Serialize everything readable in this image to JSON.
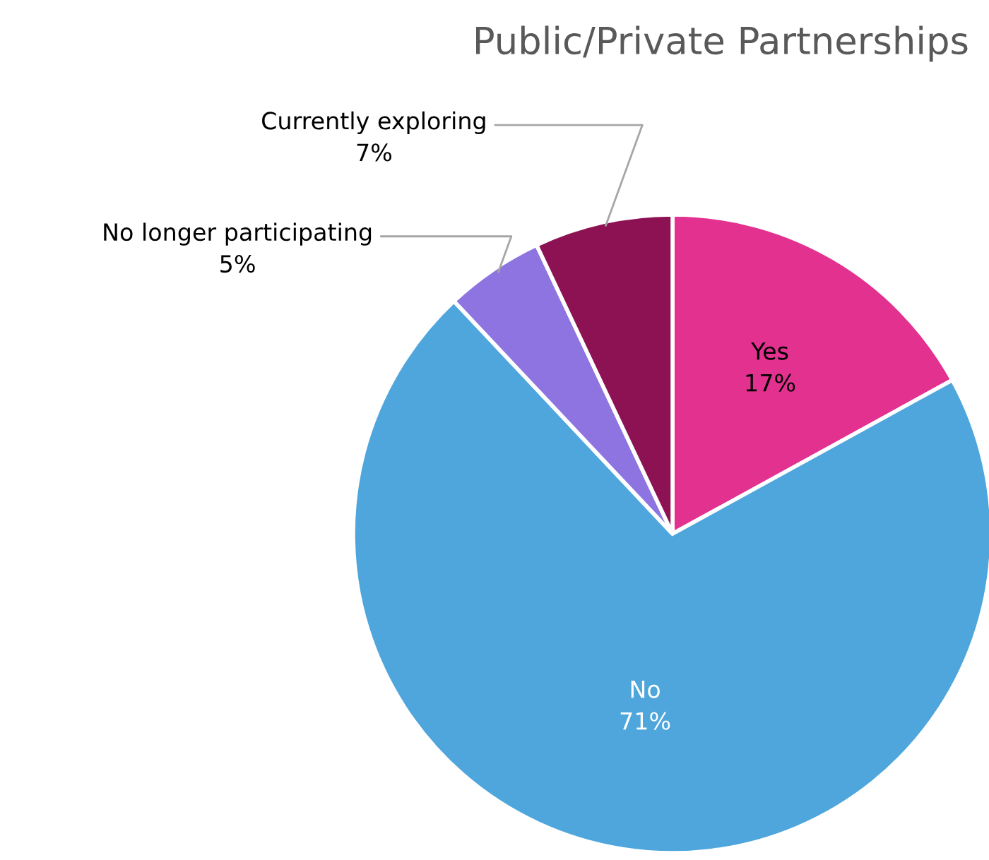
{
  "chart_data": {
    "type": "pie",
    "title": "Public/Private Partnerships",
    "categories": [
      "Yes",
      "No",
      "No longer participating",
      "Currently exploring"
    ],
    "values": [
      17,
      71,
      5,
      7
    ],
    "colors": [
      "#e3318f",
      "#4ea6dc",
      "#8d74e0",
      "#8c1253"
    ],
    "value_labels": [
      "17%",
      "71%",
      "5%",
      "7%"
    ]
  }
}
